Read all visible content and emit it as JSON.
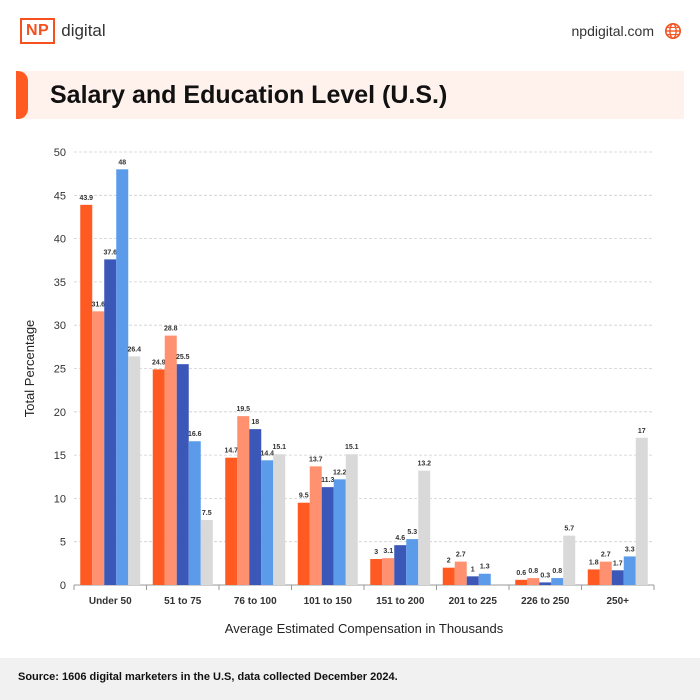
{
  "header": {
    "logo_mark": "NP",
    "logo_word": "digital",
    "website": "npdigital.com",
    "globe_icon": "globe-icon"
  },
  "title": "Salary and Education Level (U.S.)",
  "footer": {
    "source": "Source: 1606 digital marketers in the U.S, data collected December 2024."
  },
  "colors": {
    "accent": "#ff5a22",
    "series": [
      "#ff5a22",
      "#ff9070",
      "#3b57b8",
      "#5b9bea",
      "#d9d9d9"
    ]
  },
  "chart_data": {
    "type": "bar",
    "title": "",
    "xlabel": "Average Estimated Compensation in Thousands",
    "ylabel": "Total Percentage",
    "ylim": [
      0,
      50
    ],
    "yticks": [
      0,
      5,
      10,
      15,
      20,
      25,
      30,
      35,
      40,
      45,
      50
    ],
    "grid": true,
    "legend": "none",
    "categories": [
      "Under 50",
      "51 to 75",
      "76 to 100",
      "101 to 150",
      "151 to 200",
      "201 to 225",
      "226 to 250",
      "250+"
    ],
    "series": [
      {
        "values": [
          43.9,
          24.9,
          14.7,
          9.5,
          3,
          2,
          0.6,
          1.8
        ]
      },
      {
        "values": [
          31.6,
          28.8,
          19.5,
          13.7,
          3.1,
          2.7,
          0.8,
          2.7
        ]
      },
      {
        "values": [
          37.6,
          25.5,
          18,
          11.3,
          4.6,
          1,
          0.3,
          1.7
        ]
      },
      {
        "values": [
          48,
          16.6,
          14.4,
          12.2,
          5.3,
          1.3,
          0.8,
          3.3
        ]
      },
      {
        "values": [
          26.4,
          7.5,
          15.1,
          15.1,
          13.2,
          null,
          5.7,
          17
        ]
      }
    ]
  }
}
